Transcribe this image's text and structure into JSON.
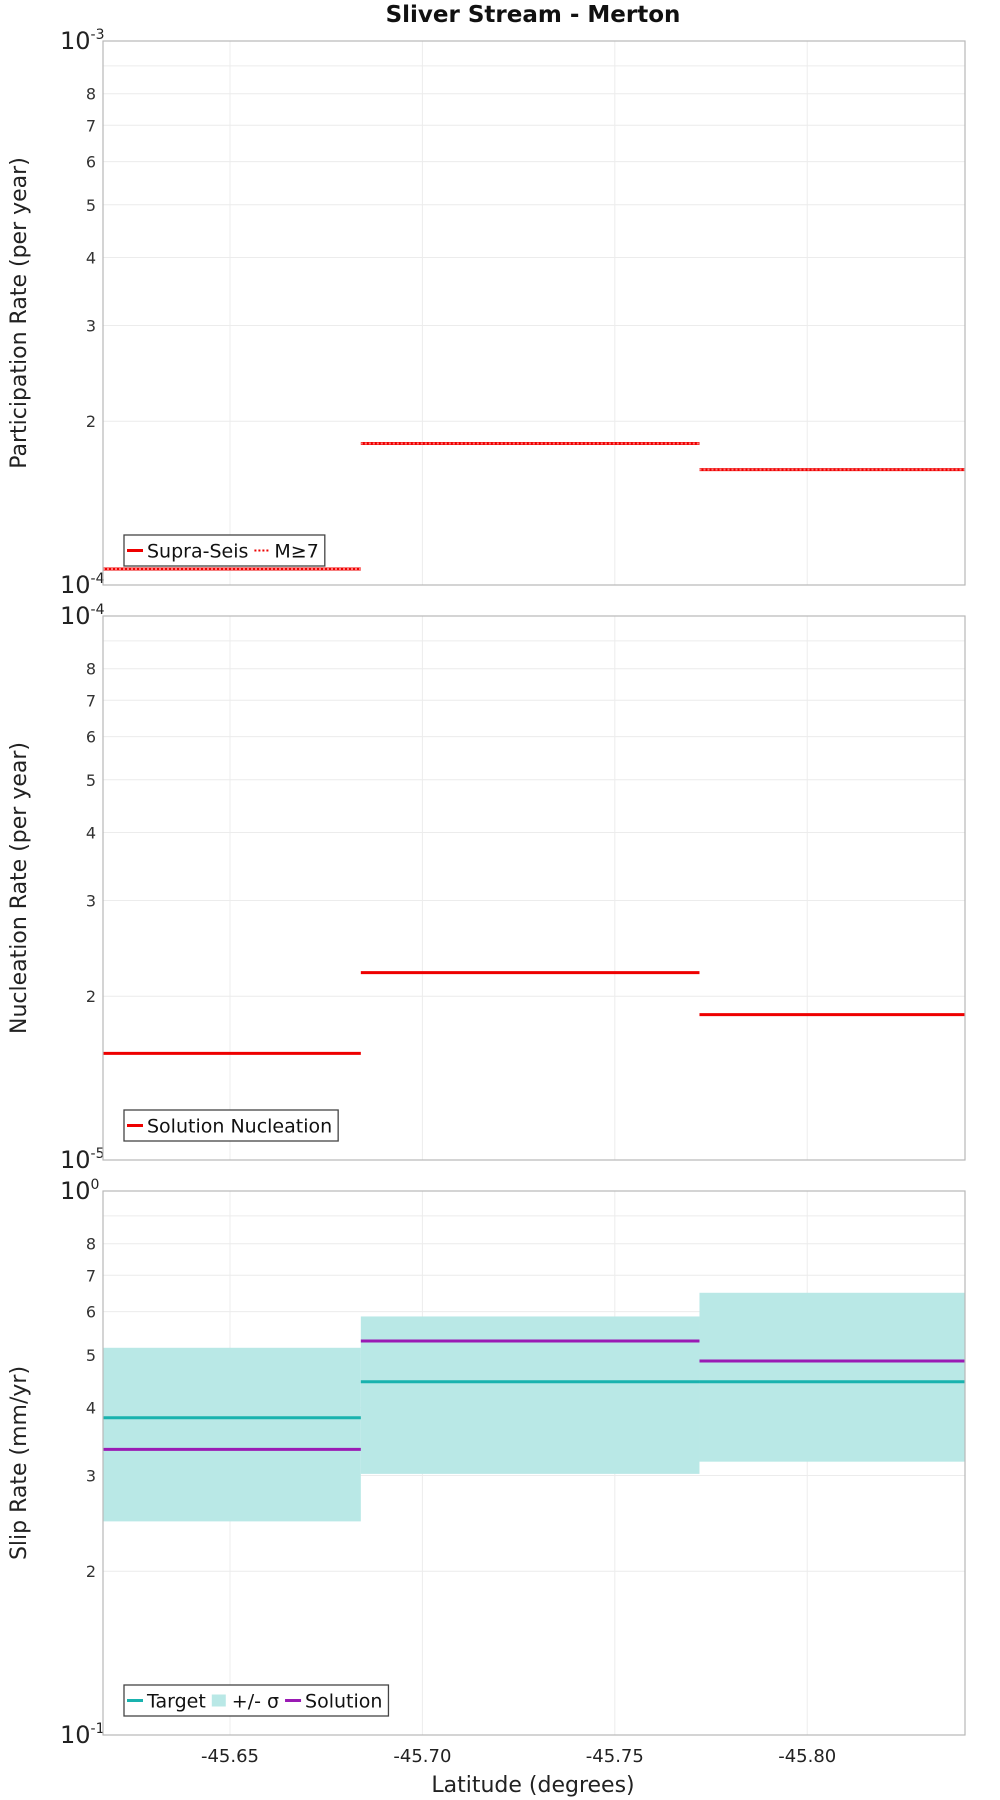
{
  "chart_data": {
    "type": "line",
    "title": "Sliver Stream - Merton",
    "xlabel": "Latitude (degrees)",
    "xlim": [
      -45.617,
      -45.841
    ],
    "x_ticks": [
      -45.65,
      -45.7,
      -45.75,
      -45.8
    ],
    "x_tick_labels": [
      "-45.65",
      "-45.70",
      "-45.75",
      "-45.80"
    ],
    "segment_bounds": [
      -45.617,
      -45.684,
      -45.772,
      -45.841
    ],
    "panels": [
      {
        "id": "participation",
        "ylabel": "Participation Rate (per year)",
        "yscale": "log",
        "ylim": [
          0.0001,
          0.001
        ],
        "decade_labels": [
          {
            "base": "10",
            "exp": "-3"
          },
          {
            "base": "10",
            "exp": "-4"
          }
        ],
        "minor_tick_labels": [
          "8",
          "7",
          "6",
          "5",
          "4",
          "3",
          "2"
        ],
        "series": [
          {
            "name": "Supra-Seis",
            "style": "solid",
            "color": "#ee0000",
            "values": [
              0.000107,
              0.000182,
              0.000163
            ]
          },
          {
            "name": "M≥7",
            "style": "dotted",
            "color": "#ee0000",
            "values": [
              0.000107,
              0.000182,
              0.000163
            ]
          }
        ],
        "legend": {
          "position": "bottom-left",
          "entries": [
            "Supra-Seis",
            "M≥7"
          ]
        }
      },
      {
        "id": "nucleation",
        "ylabel": "Nucleation Rate (per year)",
        "yscale": "log",
        "ylim": [
          1e-05,
          0.0001
        ],
        "decade_labels": [
          {
            "base": "10",
            "exp": "-4"
          },
          {
            "base": "10",
            "exp": "-5"
          }
        ],
        "minor_tick_labels": [
          "8",
          "7",
          "6",
          "5",
          "4",
          "3",
          "2"
        ],
        "series": [
          {
            "name": "Solution Nucleation",
            "style": "solid",
            "color": "#ee0000",
            "values": [
              1.57e-05,
              2.21e-05,
              1.85e-05
            ]
          }
        ],
        "legend": {
          "position": "bottom-left",
          "entries": [
            "Solution Nucleation"
          ]
        }
      },
      {
        "id": "slip",
        "ylabel": "Slip Rate (mm/yr)",
        "yscale": "log",
        "ylim": [
          0.1,
          1
        ],
        "decade_labels": [
          {
            "base": "10",
            "exp": "0"
          },
          {
            "base": "10",
            "exp": "-1"
          }
        ],
        "minor_tick_labels": [
          "8",
          "7",
          "6",
          "5",
          "4",
          "3",
          "2"
        ],
        "band": {
          "name": "+/- σ",
          "color": "#b9e8e6",
          "lower": [
            0.247,
            0.302,
            0.318
          ],
          "upper": [
            0.515,
            0.588,
            0.65
          ]
        },
        "series": [
          {
            "name": "Target",
            "style": "solid",
            "color": "#19b2ae",
            "values": [
              0.383,
              0.446,
              0.446
            ]
          },
          {
            "name": "Solution",
            "style": "solid",
            "color": "#9a1ab4",
            "values": [
              0.335,
              0.53,
              0.487
            ]
          }
        ],
        "legend": {
          "position": "bottom-left",
          "entries": [
            "Target",
            "+/- σ",
            "Solution"
          ]
        }
      }
    ]
  }
}
